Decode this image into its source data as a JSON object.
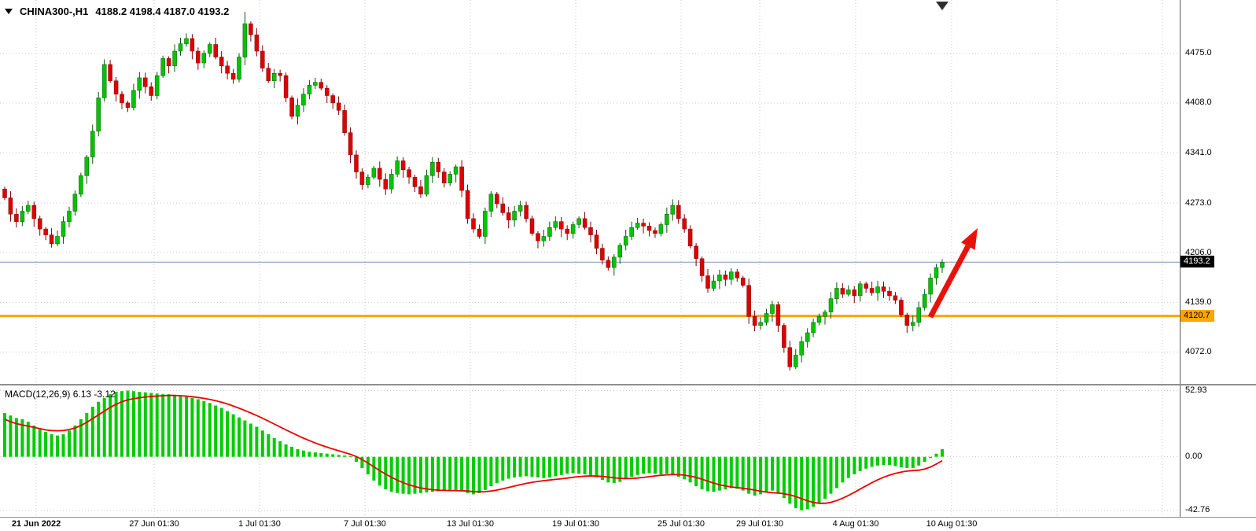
{
  "header": {
    "symbol": "CHINA300-,H1",
    "ohlc": "4188.2 4198.4 4187.0 4193.2"
  },
  "macd_header": "MACD(12,26,9) 6.13 -3.12",
  "price_axis": {
    "ticks": [
      "4475.0",
      "4408.0",
      "4341.0",
      "4273.0",
      "4206.0",
      "4139.0",
      "4072.0"
    ],
    "current_price_label": "4193.2",
    "hline_label": "4120.7"
  },
  "macd_axis": {
    "ticks": [
      "52.93",
      "0.00",
      "-42.76"
    ]
  },
  "time_axis": {
    "ticks": [
      {
        "x": 46,
        "label": "21 Jun 2022",
        "bold": true
      },
      {
        "x": 196,
        "label": "27 Jun 01:30",
        "bold": false
      },
      {
        "x": 330,
        "label": "1 Jul 01:30",
        "bold": false
      },
      {
        "x": 464,
        "label": "7 Jul 01:30",
        "bold": false
      },
      {
        "x": 598,
        "label": "13 Jul 01:30",
        "bold": false
      },
      {
        "x": 732,
        "label": "19 Jul 01:30",
        "bold": false
      },
      {
        "x": 866,
        "label": "25 Jul 01:30",
        "bold": false
      },
      {
        "x": 966,
        "label": "29 Jul 01:30",
        "bold": false
      },
      {
        "x": 1088,
        "label": "4 Aug 01:30",
        "bold": false
      },
      {
        "x": 1210,
        "label": "10 Aug 01:30",
        "bold": false
      }
    ],
    "extra_gridlines": [
      1344,
      1478
    ]
  },
  "colors": {
    "up": "#00C400",
    "up_border": "#005c00",
    "down": "#DE0000",
    "down_border": "#7d0000",
    "grid": "#c9c9c9",
    "hline": "#FFA500",
    "price_line": "#7a99b8",
    "macd_hist": "#00CC00",
    "macd_signal": "#EE0000",
    "arrow": "#E8120C"
  },
  "annotations": {
    "arrow": {
      "from": [
        1183,
        403
      ],
      "to": [
        1243,
        290
      ],
      "width": 7,
      "head_len": 26,
      "head_w": 20
    }
  },
  "chart_data": [
    {
      "type": "candlestick",
      "title": "CHINA300-,H1",
      "open": 4188.2,
      "high": 4198.4,
      "low": 4187.0,
      "close": 4193.2,
      "current_price": 4193.2,
      "horizontal_line": 4120.7,
      "y_range": [
        4029,
        4547
      ],
      "y_ticks": [
        4475,
        4408,
        4341,
        4273,
        4206,
        4139,
        4072
      ],
      "x_tick_labels": [
        "21 Jun 2022",
        "27 Jun 01:30",
        "1 Jul 01:30",
        "7 Jul 01:30",
        "13 Jul 01:30",
        "19 Jul 01:30",
        "25 Jul 01:30",
        "29 Jul 01:30",
        "4 Aug 01:30",
        "10 Aug 01:30"
      ],
      "closes": [
        4280,
        4258,
        4248,
        4262,
        4270,
        4252,
        4238,
        4230,
        4218,
        4228,
        4248,
        4262,
        4285,
        4310,
        4335,
        4370,
        4415,
        4460,
        4438,
        4420,
        4408,
        4402,
        4425,
        4442,
        4430,
        4418,
        4445,
        4468,
        4458,
        4478,
        4488,
        4495,
        4478,
        4462,
        4475,
        4487,
        4470,
        4458,
        4448,
        4440,
        4470,
        4515,
        4500,
        4478,
        4455,
        4438,
        4448,
        4445,
        4415,
        4390,
        4405,
        4420,
        4432,
        4436,
        4428,
        4418,
        4408,
        4398,
        4368,
        4338,
        4315,
        4298,
        4308,
        4320,
        4305,
        4292,
        4312,
        4330,
        4318,
        4308,
        4295,
        4285,
        4310,
        4328,
        4315,
        4300,
        4312,
        4322,
        4290,
        4252,
        4238,
        4228,
        4262,
        4285,
        4272,
        4260,
        4250,
        4262,
        4270,
        4252,
        4232,
        4222,
        4228,
        4240,
        4248,
        4238,
        4232,
        4244,
        4252,
        4240,
        4230,
        4212,
        4196,
        4186,
        4200,
        4216,
        4228,
        4240,
        4246,
        4242,
        4236,
        4232,
        4244,
        4258,
        4270,
        4252,
        4238,
        4215,
        4198,
        4175,
        4158,
        4168,
        4176,
        4170,
        4180,
        4172,
        4162,
        4120,
        4108,
        4112,
        4124,
        4136,
        4108,
        4078,
        4052,
        4068,
        4086,
        4098,
        4112,
        4120,
        4126,
        4144,
        4158,
        4150,
        4156,
        4148,
        4164,
        4158,
        4152,
        4160,
        4154,
        4148,
        4142,
        4122,
        4108,
        4112,
        4132,
        4150,
        4172,
        4186,
        4193.2
      ]
    },
    {
      "type": "macd",
      "title": "MACD(12,26,9)",
      "macd_value": 6.13,
      "signal_value": -3.12,
      "y_range": [
        -48,
        57
      ],
      "y_ticks": [
        52.93,
        0,
        -42.76
      ],
      "histogram": [
        35,
        33,
        31,
        30,
        28,
        25,
        22,
        20,
        18,
        17,
        18,
        21,
        25,
        30,
        35,
        40,
        44,
        47,
        50,
        52,
        52.5,
        52.93,
        52.5,
        52,
        51.5,
        51,
        50.5,
        50,
        50,
        49.5,
        49,
        48,
        47,
        46,
        44.5,
        43,
        41,
        39,
        36.5,
        34,
        31.5,
        29,
        26.5,
        24,
        21,
        18,
        15,
        12.5,
        10,
        8,
        6,
        5,
        4,
        3.5,
        3,
        2.5,
        2,
        1.5,
        1,
        0.5,
        -4,
        -9,
        -14,
        -19,
        -23,
        -26,
        -28,
        -29,
        -29.5,
        -30,
        -29.5,
        -29,
        -28.5,
        -28,
        -27.5,
        -27,
        -26.5,
        -26.5,
        -27.5,
        -29,
        -30,
        -29,
        -26.5,
        -23.5,
        -21,
        -19,
        -17.5,
        -16.5,
        -16,
        -15.5,
        -16,
        -16.5,
        -17,
        -16.5,
        -15.5,
        -14.5,
        -13.5,
        -13,
        -13.5,
        -14,
        -15,
        -16.5,
        -18.5,
        -20.5,
        -21,
        -20,
        -18,
        -16,
        -14.5,
        -13.5,
        -13,
        -13.5,
        -14,
        -13.5,
        -14.5,
        -16,
        -18,
        -20.5,
        -23.5,
        -26,
        -27.5,
        -28,
        -27,
        -26,
        -25,
        -25.5,
        -27,
        -29.5,
        -31,
        -30,
        -28.5,
        -27,
        -29,
        -33,
        -37.5,
        -41,
        -42.76,
        -42,
        -40,
        -37,
        -33.5,
        -29.5,
        -25,
        -20.5,
        -17,
        -14,
        -11.5,
        -9.5,
        -8,
        -7,
        -6.5,
        -6.5,
        -7.5,
        -8.5,
        -9,
        -9,
        -7,
        -4,
        -1,
        2.5,
        6.13
      ],
      "signal": [
        30,
        28,
        26.5,
        25.5,
        24.5,
        23.5,
        22.5,
        21.5,
        21,
        20.8,
        21,
        21.8,
        23,
        25,
        27.5,
        30.5,
        33.5,
        36.5,
        39.5,
        42,
        44,
        45.5,
        46.5,
        47.2,
        47.8,
        48.2,
        48.5,
        48.8,
        49,
        49,
        48.8,
        48.5,
        48,
        47.4,
        46.7,
        45.8,
        44.8,
        43.6,
        42.2,
        40.6,
        38.8,
        37,
        35,
        33,
        30.8,
        28.5,
        26.2,
        23.8,
        21.5,
        19.2,
        17,
        14.9,
        12.9,
        11,
        9.3,
        7.7,
        6.2,
        4.8,
        3.4,
        2,
        0.2,
        -2.2,
        -5,
        -8,
        -11,
        -13.8,
        -16.4,
        -18.7,
        -20.7,
        -22.4,
        -23.8,
        -24.9,
        -25.7,
        -26.3,
        -26.7,
        -26.9,
        -27,
        -27,
        -27.1,
        -27.4,
        -27.8,
        -28,
        -27.9,
        -27.4,
        -26.6,
        -25.6,
        -24.5,
        -23.4,
        -22.3,
        -21.3,
        -20.4,
        -19.7,
        -19.1,
        -18.6,
        -18.1,
        -17.6,
        -17,
        -16.4,
        -15.9,
        -15.5,
        -15.3,
        -15.4,
        -15.7,
        -16.2,
        -16.8,
        -17.2,
        -17.4,
        -17.3,
        -17,
        -16.5,
        -15.9,
        -15.3,
        -14.8,
        -14.4,
        -14.2,
        -14.3,
        -14.7,
        -15.4,
        -16.5,
        -17.9,
        -19.5,
        -21,
        -22.3,
        -23.3,
        -24.1,
        -24.7,
        -25.2,
        -25.8,
        -26.6,
        -27.5,
        -28.2,
        -28.7,
        -29,
        -29.5,
        -30.4,
        -31.8,
        -33.5,
        -35.2,
        -36.5,
        -37.2,
        -37.2,
        -36.4,
        -35,
        -33.1,
        -30.9,
        -28.4,
        -25.8,
        -23.2,
        -20.7,
        -18.4,
        -16.4,
        -14.7,
        -13.3,
        -12.2,
        -11.4,
        -11,
        -10.7,
        -9.8,
        -8.2,
        -5.8,
        -3.12
      ]
    }
  ]
}
